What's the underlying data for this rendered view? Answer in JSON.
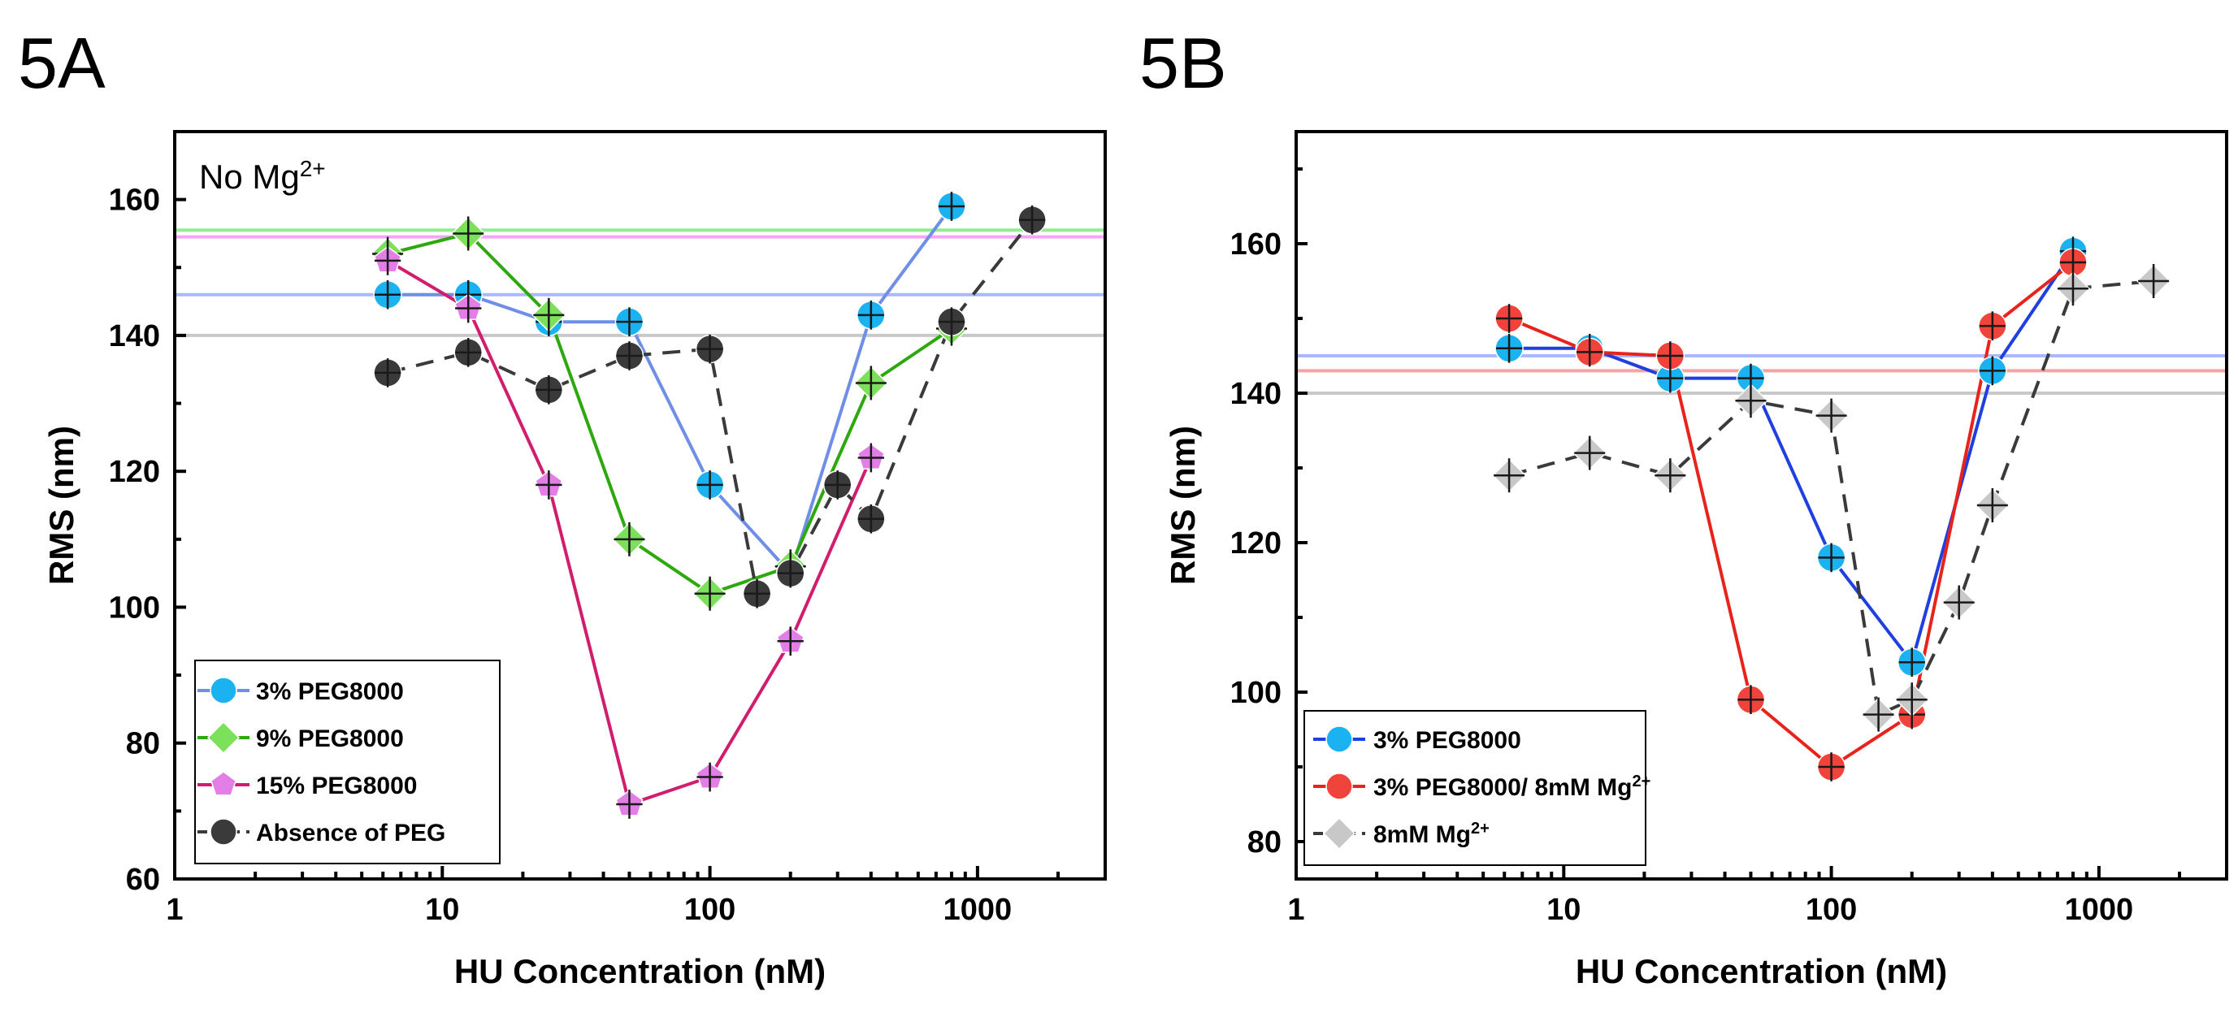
{
  "chart_data": [
    {
      "panel_label": "5A",
      "type": "line",
      "xscale": "log",
      "xlim": [
        1,
        3000
      ],
      "ylim": [
        60,
        170
      ],
      "xticks": [
        1,
        10,
        100,
        1000
      ],
      "xtick_labels": [
        "1",
        "10",
        "100",
        "1000"
      ],
      "yticks": [
        60,
        80,
        100,
        120,
        140,
        160
      ],
      "ytick_labels": [
        "60",
        "80",
        "100",
        "120",
        "140",
        "160"
      ],
      "xlabel": "HU Concentration (nM)",
      "ylabel": "RMS (nm)",
      "annotation": "No Mg",
      "annotation_sup": "2+",
      "reference_lines": [
        {
          "y": 155.5,
          "color": "#90ee90"
        },
        {
          "y": 154.5,
          "color": "#f4a6f4"
        },
        {
          "y": 146,
          "color": "#aab8ff"
        },
        {
          "y": 140,
          "color": "#c8c8c8"
        }
      ],
      "series": [
        {
          "name": "3% PEG8000",
          "color": "#1ab2f0",
          "line_color": "#6f8ee8",
          "marker": "circle",
          "dashed": false,
          "x": [
            6.25,
            12.5,
            25,
            50,
            100,
            200,
            400,
            800
          ],
          "y": [
            146,
            146,
            142,
            142,
            118,
            105,
            143,
            159
          ]
        },
        {
          "name": "9% PEG8000",
          "color": "#7de05a",
          "line_color": "#2ea80f",
          "marker": "diamond",
          "dashed": false,
          "x": [
            6.25,
            12.5,
            25,
            50,
            100,
            200,
            400,
            800
          ],
          "y": [
            152,
            155,
            143,
            110,
            102,
            106,
            133,
            141
          ]
        },
        {
          "name": "15% PEG8000",
          "color": "#e27ee6",
          "line_color": "#d01d6e",
          "marker": "pentagon",
          "dashed": false,
          "x": [
            6.25,
            12.5,
            25,
            50,
            100,
            200,
            400
          ],
          "y": [
            151,
            144,
            118,
            71,
            75,
            95,
            122
          ]
        },
        {
          "name": "Absence of PEG",
          "color": "#3a3a3a",
          "line_color": "#3a3a3a",
          "marker": "circle",
          "dashed": true,
          "x": [
            6.25,
            12.5,
            25,
            50,
            100,
            150,
            200,
            300,
            400,
            800,
            1600
          ],
          "y": [
            134.5,
            137.5,
            132,
            137,
            138,
            102,
            105,
            118,
            113,
            142,
            157
          ]
        }
      ]
    },
    {
      "panel_label": "5B",
      "type": "line",
      "xscale": "log",
      "xlim": [
        1,
        3000
      ],
      "ylim": [
        75,
        175
      ],
      "xticks": [
        1,
        10,
        100,
        1000
      ],
      "xtick_labels": [
        "1",
        "10",
        "100",
        "1000"
      ],
      "yticks": [
        80,
        100,
        120,
        140,
        160
      ],
      "ytick_labels": [
        "80",
        "100",
        "120",
        "140",
        "160"
      ],
      "xlabel": "HU Concentration (nM)",
      "ylabel": "RMS (nm)",
      "reference_lines": [
        {
          "y": 145,
          "color": "#aab8ff"
        },
        {
          "y": 143,
          "color": "#f5a3a3"
        },
        {
          "y": 140,
          "color": "#c8c8c8"
        }
      ],
      "series": [
        {
          "name": "3% PEG8000",
          "color": "#1ab2f0",
          "line_color": "#1f3fe0",
          "marker": "circle",
          "dashed": false,
          "x": [
            6.25,
            12.5,
            25,
            50,
            100,
            200,
            400,
            800
          ],
          "y": [
            146,
            146,
            142,
            142,
            118,
            104,
            143,
            159
          ]
        },
        {
          "name": "3% PEG8000/ 8mM Mg",
          "name_sup": "2+",
          "color": "#f0433b",
          "line_color": "#e8231c",
          "marker": "circle",
          "dashed": false,
          "x": [
            6.25,
            12.5,
            25,
            50,
            100,
            200,
            400,
            800
          ],
          "y": [
            150,
            145.5,
            145,
            99,
            90,
            97,
            149,
            157.5
          ]
        },
        {
          "name": "8mM Mg",
          "name_sup": "2+",
          "color": "#c8c8c8",
          "line_color": "#3a3a3a",
          "marker": "diamond",
          "dashed": true,
          "x": [
            6.25,
            12.5,
            25,
            50,
            100,
            150,
            200,
            300,
            400,
            800,
            1600
          ],
          "y": [
            129,
            132,
            129,
            139,
            137,
            97,
            99,
            112,
            125,
            154,
            155
          ]
        }
      ]
    }
  ]
}
